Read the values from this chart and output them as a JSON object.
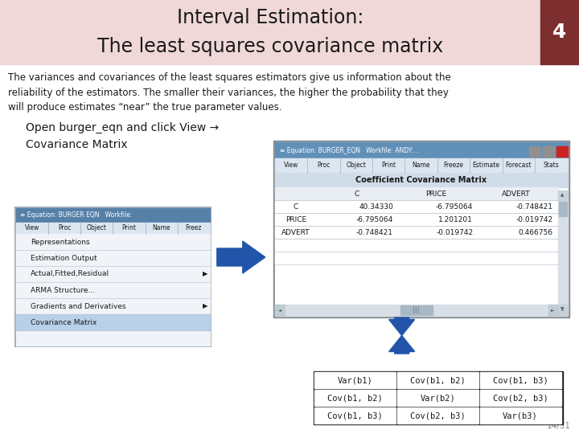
{
  "title_line1": "Interval Estimation:",
  "title_line2": "The least squares covariance matrix",
  "title_bg": "#f0d8d8",
  "title_color": "#1a1a1a",
  "slide_num": "4",
  "slide_num_bg": "#7d2e2e",
  "body_text": "The variances and covariances of the least squares estimators give us information about the\nreliability of the estimators. The smaller their variances, the higher the probability that they\nwill produce estimates “near” the true parameter values.",
  "instruction_text": "Open burger_eqn and click View →\nCovariance Matrix",
  "page_num": "14/31",
  "bg_color": "#ffffff",
  "cov_table_title": "Coefficient Covariance Matrix",
  "cov_cols": [
    "",
    "C",
    "PRICE",
    "ADVERT"
  ],
  "cov_rows": [
    [
      "C",
      "40.34330",
      "-6.795064",
      "-0.748421"
    ],
    [
      "PRICE",
      "-6.795064",
      "1.201201",
      "-0.019742"
    ],
    [
      "ADVERT",
      "-0.748421",
      "-0.019742",
      "0.466756"
    ]
  ],
  "matrix_cells": [
    [
      "Var(b1)",
      "Cov(b1, b2)",
      "Cov(b1, b3)"
    ],
    [
      "Cov(b1, b2)",
      "Var(b2)",
      "Cov(b2, b3)"
    ],
    [
      "Cov(b1, b3)",
      "Cov(b2, b3)",
      "Var(b3)"
    ]
  ],
  "menu_items": [
    "Representations",
    "Estimation Output",
    "Actual,Fitted,Residual",
    "ARMA Structure...",
    "Gradients and Derivatives",
    "Covariance Matrix"
  ],
  "menu_toolbar": [
    "View",
    "Proc",
    "Object",
    "Print",
    "Name",
    "Freez"
  ],
  "eqn_toolbar2": [
    "View",
    "Proc",
    "Object",
    "Print",
    "Name",
    "Freeze",
    "Estimate",
    "Forecast",
    "Stats"
  ],
  "arrow_color": "#2255aa",
  "title_fontsize": 17,
  "body_fontsize": 8.5,
  "instr_fontsize": 10
}
